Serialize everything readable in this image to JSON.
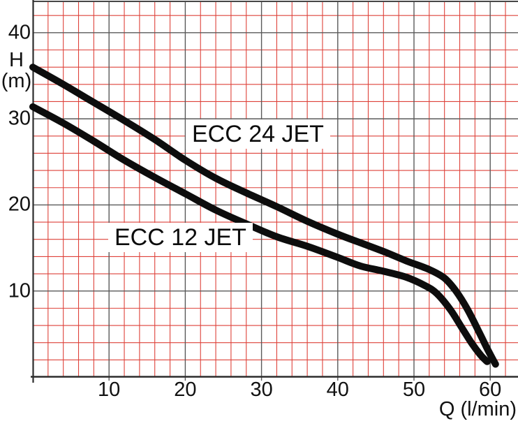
{
  "chart_data": {
    "type": "line",
    "title": "",
    "xlabel": "Q (l/min)",
    "ylabel_lines": [
      "H",
      "(m)"
    ],
    "x_ticks": [
      10,
      20,
      30,
      40,
      50,
      60
    ],
    "y_ticks": [
      10,
      20,
      30,
      40
    ],
    "xlim": [
      0,
      63.5
    ],
    "ylim": [
      0,
      43.6
    ],
    "grid": {
      "minor_step": 2,
      "major_step": 10,
      "minor_color": "#de423a",
      "major_color": "#5a5a5a",
      "axis_color": "#2d2d2d",
      "minor_on": true,
      "major_on": true
    },
    "legend_position": "inline-labels",
    "curve_color": "#0d0d0d",
    "curve_width": 10,
    "series": [
      {
        "name": "ECC 24 JET",
        "points": [
          [
            0,
            36.0
          ],
          [
            4,
            34.0
          ],
          [
            8,
            31.9
          ],
          [
            12,
            29.8
          ],
          [
            16,
            27.6
          ],
          [
            20,
            25.2
          ],
          [
            24,
            23.1
          ],
          [
            28,
            21.4
          ],
          [
            32,
            19.8
          ],
          [
            36,
            18.1
          ],
          [
            40,
            16.6
          ],
          [
            43,
            15.6
          ],
          [
            46,
            14.6
          ],
          [
            49,
            13.5
          ],
          [
            52,
            12.5
          ],
          [
            54,
            11.5
          ],
          [
            55.5,
            10.0
          ],
          [
            57,
            7.9
          ],
          [
            58.5,
            5.3
          ],
          [
            59.5,
            3.5
          ],
          [
            60.2,
            2.3
          ],
          [
            60.7,
            1.5
          ]
        ]
      },
      {
        "name": "ECC 12 JET",
        "points": [
          [
            0,
            31.4
          ],
          [
            4,
            29.5
          ],
          [
            8,
            27.4
          ],
          [
            12,
            25.2
          ],
          [
            16,
            23.2
          ],
          [
            20,
            21.3
          ],
          [
            24,
            19.4
          ],
          [
            28,
            17.8
          ],
          [
            32,
            16.3
          ],
          [
            36,
            15.2
          ],
          [
            40,
            13.9
          ],
          [
            43,
            12.9
          ],
          [
            46,
            12.3
          ],
          [
            49,
            11.6
          ],
          [
            51.5,
            10.6
          ],
          [
            53,
            9.7
          ],
          [
            54.8,
            7.8
          ],
          [
            56.3,
            5.7
          ],
          [
            57.6,
            3.9
          ],
          [
            58.8,
            2.5
          ],
          [
            59.6,
            1.8
          ]
        ]
      }
    ]
  }
}
